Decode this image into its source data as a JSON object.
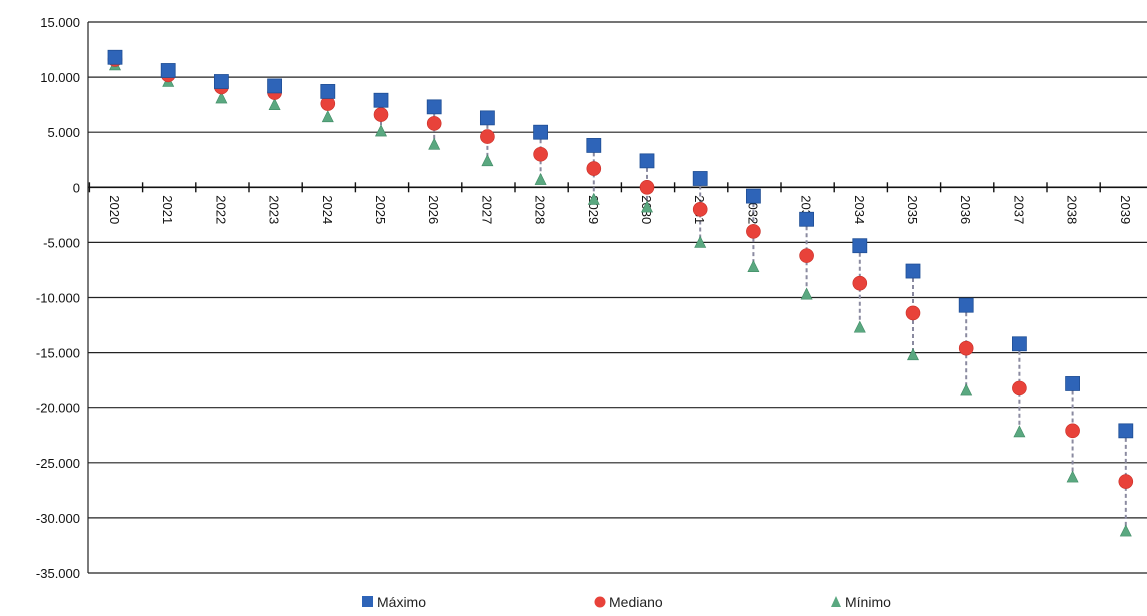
{
  "chart_data": {
    "type": "scatter",
    "categories": [
      "2020",
      "2021",
      "2022",
      "2023",
      "2024",
      "2025",
      "2026",
      "2027",
      "2028",
      "2029",
      "2030",
      "2031",
      "2032",
      "2033",
      "2034",
      "2035",
      "2036",
      "2037",
      "2038",
      "2039"
    ],
    "series": [
      {
        "name": "Máximo",
        "marker": "square",
        "color": "#2e64b8",
        "values": [
          11800,
          10600,
          9600,
          9200,
          8700,
          7900,
          7300,
          6300,
          5000,
          3800,
          2400,
          800,
          -800,
          -2900,
          -5300,
          -7600,
          -10700,
          -14200,
          -17800,
          -22100
        ]
      },
      {
        "name": "Mediano",
        "marker": "circle",
        "color": "#e8423a",
        "values": [
          11600,
          10200,
          9100,
          8600,
          7600,
          6600,
          5800,
          4600,
          3000,
          1700,
          0,
          -2000,
          -4000,
          -6200,
          -8700,
          -11400,
          -14600,
          -18200,
          -22100,
          -26700
        ]
      },
      {
        "name": "Mínimo",
        "marker": "triangle",
        "color": "#5aa880",
        "values": [
          11100,
          9600,
          8100,
          7500,
          6400,
          5100,
          3900,
          2400,
          700,
          -1100,
          -1800,
          -5000,
          -7200,
          -9700,
          -12700,
          -15200,
          -18400,
          -22200,
          -26300,
          -31200
        ]
      }
    ],
    "yticks": [
      "15.000",
      "10.000",
      "5.000",
      "0",
      "-5.000",
      "-10.000",
      "-15.000",
      "-20.000",
      "-25.000",
      "-30.000",
      "-35.000"
    ],
    "ylim": [
      -35000,
      15000
    ],
    "ystep": 5000,
    "grid": true,
    "legend_position": "bottom",
    "title": "",
    "xlabel": "",
    "ylabel": ""
  }
}
